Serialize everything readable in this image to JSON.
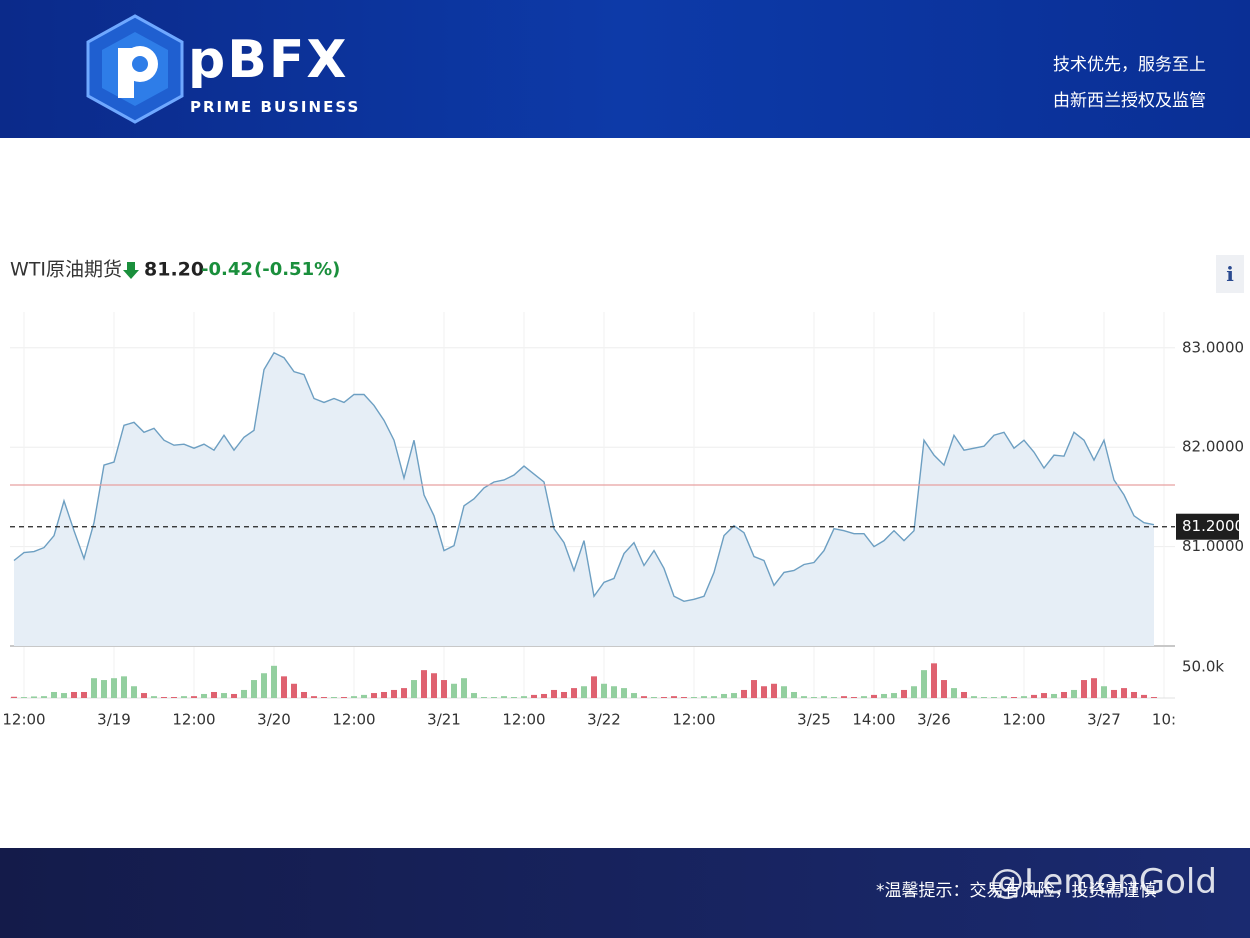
{
  "header": {
    "brand": "pBFX",
    "brand_sub": "PRIME BUSINESS",
    "taglines": [
      "技术优先，服务至上",
      "由新西兰授权及监管"
    ]
  },
  "footer": {
    "notice": "*温馨提示：交易有风险，投资需谨慎",
    "watermark": "@LemonGold"
  },
  "chart_data": {
    "type": "line",
    "title": "WTI原油期货",
    "price": "81.20",
    "change": "-0.42",
    "change_pct": "(-0.51%)",
    "categories": [
      null,
      "12:00",
      null,
      null,
      null,
      null,
      null,
      null,
      null,
      null,
      "3/19",
      null,
      null,
      null,
      null,
      null,
      null,
      null,
      "12:00",
      null,
      null,
      null,
      null,
      null,
      null,
      null,
      "3/20",
      null,
      null,
      null,
      null,
      null,
      null,
      null,
      "12:00",
      null,
      null,
      null,
      null,
      null,
      null,
      null,
      null,
      "3/21",
      null,
      null,
      null,
      null,
      null,
      null,
      null,
      "12:00",
      null,
      null,
      null,
      null,
      null,
      null,
      null,
      "3/22",
      null,
      null,
      null,
      null,
      null,
      null,
      null,
      null,
      "12:00",
      null,
      null,
      null,
      null,
      null,
      null,
      null,
      null,
      null,
      null,
      null,
      "3/25",
      null,
      null,
      null,
      null,
      null,
      "14:00",
      null,
      null,
      null,
      null,
      null,
      "3/26",
      null,
      null,
      null,
      null,
      null,
      null,
      null,
      null,
      "12:00",
      null,
      null,
      null,
      null,
      null,
      null,
      null,
      "3/27",
      null,
      null,
      null,
      null,
      null,
      "10:"
    ],
    "series": [
      {
        "color": "#6d9fc2",
        "fill": "#e6eef6",
        "values": [
          80.86,
          80.94,
          80.95,
          80.99,
          81.11,
          81.46,
          81.16,
          80.88,
          81.24,
          81.82,
          81.85,
          82.22,
          82.25,
          82.15,
          82.19,
          82.07,
          82.02,
          82.03,
          81.99,
          82.03,
          81.97,
          82.12,
          81.97,
          82.1,
          82.17,
          82.78,
          82.95,
          82.9,
          82.76,
          82.73,
          82.49,
          82.45,
          82.49,
          82.45,
          82.53,
          82.53,
          82.42,
          82.27,
          82.07,
          81.69,
          82.07,
          81.52,
          81.31,
          80.96,
          81.01,
          81.41,
          81.48,
          81.59,
          81.65,
          81.67,
          81.72,
          81.81,
          81.73,
          81.65,
          81.18,
          81.04,
          80.76,
          81.06,
          80.5,
          80.64,
          80.68,
          80.93,
          81.04,
          80.81,
          80.96,
          80.78,
          80.5,
          80.45,
          80.47,
          80.5,
          80.74,
          81.11,
          81.21,
          81.14,
          80.9,
          80.86,
          80.61,
          80.74,
          80.76,
          80.82,
          80.84,
          80.96,
          81.18,
          81.16,
          81.13,
          81.13,
          81.0,
          81.06,
          81.16,
          81.06,
          81.16,
          82.07,
          81.92,
          81.82,
          82.12,
          81.97,
          81.99,
          82.01,
          82.12,
          82.15,
          81.99,
          82.07,
          81.95,
          81.79,
          81.92,
          81.91,
          82.15,
          82.07,
          81.87,
          82.07,
          81.67,
          81.52,
          81.31,
          81.24,
          81.22,
          null
        ]
      }
    ],
    "ylim": [
      80,
      83.36
    ],
    "yticks": [
      {
        "value": 81,
        "label": "81.0000"
      },
      {
        "value": 82,
        "label": "82.0000"
      },
      {
        "value": 83,
        "label": "83.0000"
      }
    ],
    "last_price": {
      "value": 81.2,
      "label": "81.2000"
    },
    "reference_line": 81.62,
    "volume": {
      "values": [
        2000,
        1500,
        2500,
        3000,
        9700,
        8000,
        9700,
        9700,
        32000,
        29000,
        32000,
        35000,
        19000,
        8000,
        3000,
        1600,
        1600,
        3000,
        3000,
        6500,
        9700,
        8000,
        6500,
        13000,
        29000,
        40000,
        52000,
        35000,
        23000,
        9700,
        3000,
        1600,
        1600,
        1600,
        3000,
        5000,
        8000,
        9700,
        13000,
        16000,
        29000,
        45000,
        40000,
        29000,
        23000,
        32000,
        8000,
        1600,
        1600,
        3000,
        1600,
        3000,
        5000,
        6500,
        13000,
        9700,
        16000,
        19000,
        35000,
        23000,
        19000,
        16000,
        8000,
        3000,
        1600,
        1600,
        3000,
        1600,
        1600,
        3000,
        3000,
        6500,
        8000,
        13000,
        29000,
        19000,
        23000,
        19000,
        9700,
        3000,
        1600,
        3000,
        1600,
        3000,
        1600,
        3000,
        5000,
        6500,
        8000,
        13000,
        19000,
        45000,
        56000,
        29000,
        16000,
        9700,
        3000,
        1600,
        1600,
        3000,
        1600,
        3000,
        5000,
        8000,
        6500,
        9700,
        13000,
        29000,
        32000,
        19000,
        13000,
        16000,
        9700,
        5000,
        1600,
        null
      ],
      "ylim": [
        0,
        84000
      ],
      "yticks": [
        {
          "value": 50000,
          "label": "50.0k"
        }
      ],
      "up_color": "#93cf9f",
      "down_color": "#df6270"
    },
    "grid": true
  }
}
